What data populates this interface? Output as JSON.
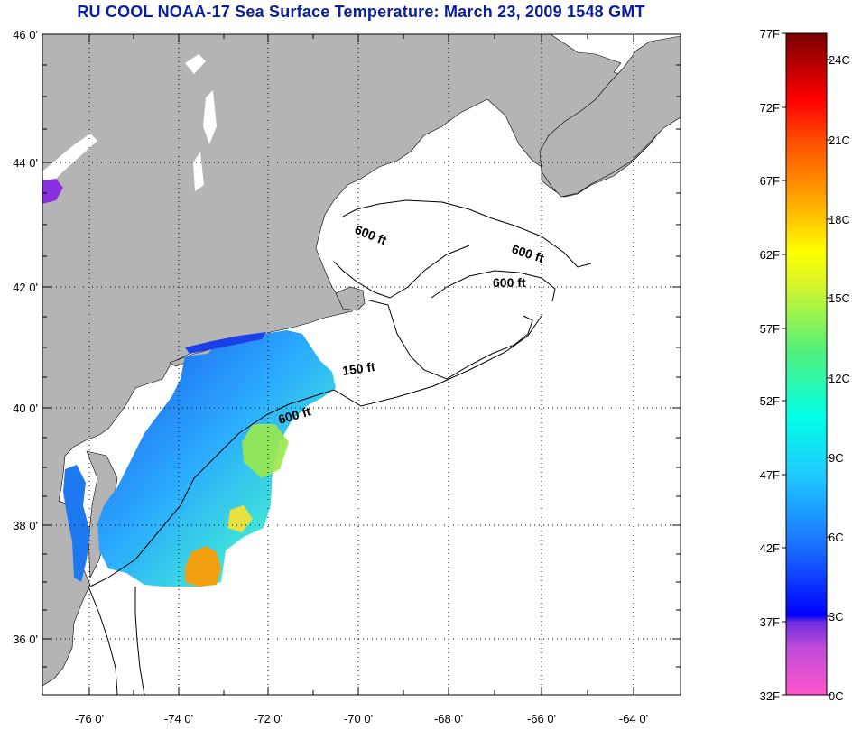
{
  "title": "RU COOL  NOAA-17  Sea Surface Temperature:  March 23, 2009 1548 GMT",
  "map": {
    "lat_labels": [
      "46 0'",
      "44 0'",
      "42 0'",
      "40 0'",
      "38 0'",
      "36 0'"
    ],
    "lon_labels": [
      "-76 0'",
      "-74 0'",
      "-72 0'",
      "-70 0'",
      "-68 0'",
      "-66 0'",
      "-64 0'"
    ],
    "contour_labels": [
      "600 ft",
      "600 ft",
      "600 ft",
      "150 ft",
      "600 ft"
    ],
    "colors": {
      "land": "#b4b4b4",
      "ocean_no_data": "#ffffff",
      "grid": "#000000"
    }
  },
  "colorbar": {
    "f_labels": [
      "77F",
      "72F",
      "67F",
      "62F",
      "57F",
      "52F",
      "47F",
      "42F",
      "37F",
      "32F"
    ],
    "c_labels": [
      "24C",
      "21C",
      "18C",
      "15C",
      "12C",
      "9C",
      "6C",
      "3C",
      "0C"
    ]
  }
}
